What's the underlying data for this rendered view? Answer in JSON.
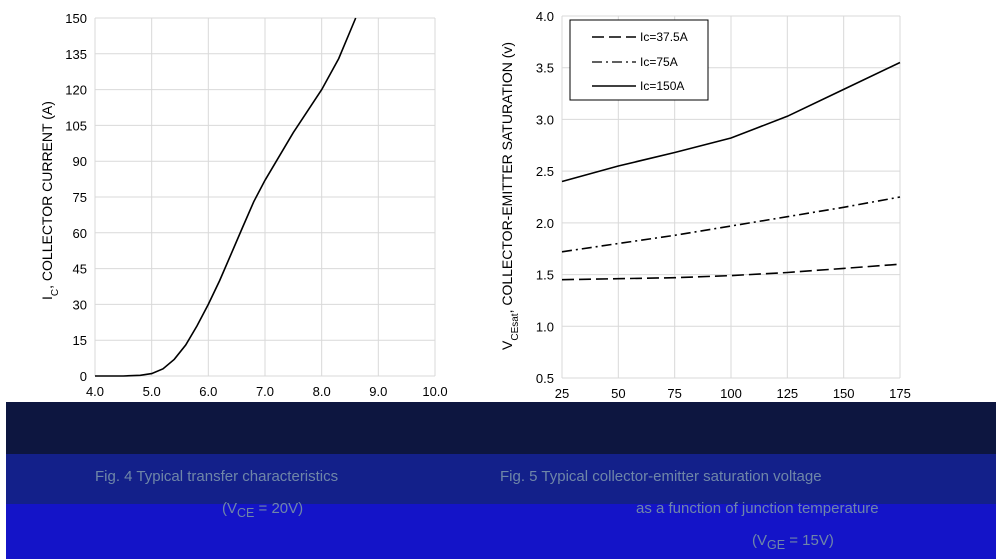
{
  "chart_data": [
    {
      "type": "line",
      "ylabel": "I",
      "ylabel_sub": "C",
      "ylabel_tail": ", COLLECTOR CURRENT (A)",
      "xlim": [
        4.0,
        10.0
      ],
      "ylim": [
        0,
        150
      ],
      "x_ticks": [
        "4.0",
        "5.0",
        "6.0",
        "7.0",
        "8.0",
        "9.0",
        "10.0"
      ],
      "y_ticks": [
        "0",
        "15",
        "30",
        "45",
        "60",
        "75",
        "90",
        "105",
        "120",
        "135",
        "150"
      ],
      "grid": true,
      "series": [
        {
          "x": [
            4.0,
            4.5,
            4.8,
            5.0,
            5.2,
            5.4,
            5.6,
            5.8,
            6.0,
            6.2,
            6.4,
            6.6,
            6.8,
            7.0,
            7.5,
            8.0,
            8.3,
            8.6
          ],
          "y": [
            0,
            0,
            0.3,
            1,
            3,
            7,
            13,
            21,
            30,
            40,
            51,
            62,
            73,
            82,
            102,
            120,
            133,
            150
          ]
        }
      ],
      "caption": "Fig. 4 Typical transfer characteristics",
      "caption2": "(V",
      "caption2_sub": "CE",
      "caption2_tail": " = 20V)"
    },
    {
      "type": "line",
      "ylabel": "V",
      "ylabel_sub": "CEsat",
      "ylabel_tail": ", COLLECTOR-EMITTER SATURATION (v)",
      "xlim": [
        25,
        175
      ],
      "ylim": [
        0.5,
        4.0
      ],
      "x_ticks": [
        "25",
        "50",
        "75",
        "100",
        "125",
        "150",
        "175"
      ],
      "y_ticks": [
        "0.5",
        "1.0",
        "1.5",
        "2.0",
        "2.5",
        "3.0",
        "3.5",
        "4.0"
      ],
      "grid": true,
      "legend_position": "top-left",
      "series": [
        {
          "name": "Ic=37.5A",
          "dash": "long-dash",
          "x": [
            25,
            50,
            75,
            100,
            125,
            150,
            175
          ],
          "y": [
            1.45,
            1.46,
            1.47,
            1.49,
            1.52,
            1.56,
            1.6
          ]
        },
        {
          "name": "Ic=75A",
          "dash": "dash-dot",
          "x": [
            25,
            50,
            75,
            100,
            125,
            150,
            175
          ],
          "y": [
            1.72,
            1.8,
            1.88,
            1.97,
            2.06,
            2.15,
            2.25
          ]
        },
        {
          "name": "Ic=150A",
          "dash": "solid",
          "x": [
            25,
            50,
            75,
            100,
            125,
            150,
            175
          ],
          "y": [
            2.4,
            2.55,
            2.68,
            2.82,
            3.03,
            3.29,
            3.55
          ]
        }
      ],
      "caption": "Fig. 5 Typical collector-emitter saturation voltage",
      "caption2": "as a function of junction temperature",
      "caption3": "(V",
      "caption3_sub": "GE",
      "caption3_tail": " = 15V)"
    }
  ],
  "colors": {
    "band_dark": "#0d1640",
    "band_mid": "#13208a",
    "band_blue": "#1414c8",
    "caption_text": "#6f86a8",
    "grid": "#d9d9d9"
  }
}
